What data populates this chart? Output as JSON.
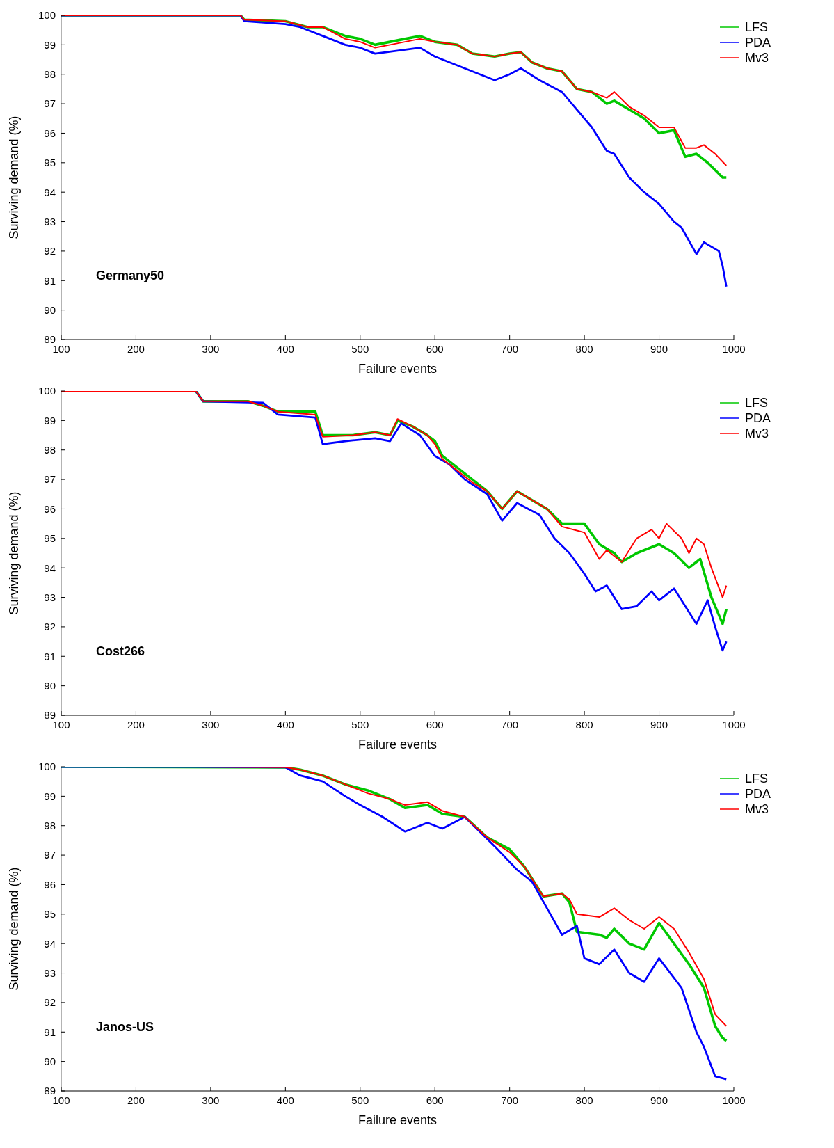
{
  "chart_data": [
    {
      "type": "line",
      "xlabel": "Failure events",
      "ylabel": "Surviving demand (%)",
      "annotations": [
        "Germany50"
      ],
      "xlim": [
        100,
        1000
      ],
      "xticks": [
        100,
        200,
        300,
        400,
        500,
        600,
        700,
        800,
        900,
        1000
      ],
      "ylim": [
        89,
        100
      ],
      "yticks": [
        89,
        90,
        91,
        92,
        93,
        94,
        95,
        96,
        97,
        98,
        99,
        100
      ],
      "grid": false,
      "legend": "top right",
      "marker": "none",
      "line_style": "solid",
      "series": [
        {
          "name": "LFS",
          "color": "#00c800",
          "x": [
            100,
            340,
            345,
            400,
            430,
            450,
            480,
            500,
            520,
            540,
            560,
            580,
            600,
            630,
            650,
            680,
            700,
            715,
            730,
            750,
            770,
            790,
            810,
            830,
            840,
            860,
            880,
            900,
            920,
            935,
            950,
            965,
            985,
            990
          ],
          "values": [
            100,
            100,
            99.85,
            99.8,
            99.6,
            99.6,
            99.3,
            99.2,
            99.0,
            99.1,
            99.2,
            99.3,
            99.1,
            99.0,
            98.7,
            98.6,
            98.7,
            98.75,
            98.4,
            98.2,
            98.1,
            97.5,
            97.4,
            97.0,
            97.1,
            96.8,
            96.5,
            96.0,
            96.1,
            95.2,
            95.3,
            95.0,
            94.5,
            94.5
          ]
        },
        {
          "name": "PDA",
          "color": "#0000ff",
          "x": [
            100,
            340,
            345,
            400,
            420,
            450,
            480,
            500,
            520,
            550,
            580,
            600,
            630,
            660,
            680,
            700,
            715,
            740,
            770,
            790,
            810,
            820,
            830,
            840,
            860,
            880,
            900,
            920,
            930,
            950,
            960,
            980,
            985,
            990
          ],
          "values": [
            100,
            100,
            99.8,
            99.7,
            99.6,
            99.3,
            99.0,
            98.9,
            98.7,
            98.8,
            98.9,
            98.6,
            98.3,
            98.0,
            97.8,
            98.0,
            98.2,
            97.8,
            97.4,
            96.8,
            96.2,
            95.8,
            95.4,
            95.3,
            94.5,
            94.0,
            93.6,
            93.0,
            92.8,
            91.9,
            92.3,
            92.0,
            91.5,
            90.8
          ]
        },
        {
          "name": "Mv3",
          "color": "#ff0000",
          "x": [
            100,
            340,
            345,
            400,
            430,
            450,
            480,
            500,
            520,
            540,
            560,
            580,
            600,
            630,
            650,
            680,
            700,
            715,
            730,
            750,
            770,
            790,
            810,
            830,
            840,
            860,
            880,
            900,
            920,
            935,
            950,
            960,
            975,
            990
          ],
          "values": [
            100,
            100,
            99.85,
            99.8,
            99.6,
            99.6,
            99.2,
            99.1,
            98.9,
            99.0,
            99.1,
            99.2,
            99.1,
            99.0,
            98.7,
            98.6,
            98.7,
            98.75,
            98.4,
            98.2,
            98.1,
            97.5,
            97.4,
            97.2,
            97.4,
            96.9,
            96.6,
            96.2,
            96.2,
            95.5,
            95.5,
            95.6,
            95.3,
            94.9
          ]
        }
      ]
    },
    {
      "type": "line",
      "xlabel": "Failure events",
      "ylabel": "Surviving demand (%)",
      "annotations": [
        "Cost266"
      ],
      "xlim": [
        100,
        1000
      ],
      "xticks": [
        100,
        200,
        300,
        400,
        500,
        600,
        700,
        800,
        900,
        1000
      ],
      "ylim": [
        89,
        100
      ],
      "yticks": [
        89,
        90,
        91,
        92,
        93,
        94,
        95,
        96,
        97,
        98,
        99,
        100
      ],
      "grid": false,
      "legend": "top right",
      "marker": "none",
      "line_style": "solid",
      "series": [
        {
          "name": "LFS",
          "color": "#00c800",
          "x": [
            100,
            280,
            290,
            350,
            370,
            390,
            440,
            450,
            490,
            520,
            540,
            550,
            570,
            590,
            600,
            610,
            630,
            650,
            670,
            690,
            710,
            750,
            770,
            800,
            820,
            840,
            850,
            870,
            900,
            920,
            940,
            955,
            970,
            985,
            990
          ],
          "values": [
            100,
            100,
            99.65,
            99.65,
            99.5,
            99.3,
            99.3,
            98.5,
            98.5,
            98.6,
            98.5,
            99.0,
            98.8,
            98.5,
            98.3,
            97.8,
            97.4,
            97.0,
            96.6,
            96.0,
            96.6,
            96.0,
            95.5,
            95.5,
            94.8,
            94.5,
            94.2,
            94.5,
            94.8,
            94.5,
            94.0,
            94.3,
            93.0,
            92.1,
            92.6
          ]
        },
        {
          "name": "PDA",
          "color": "#0000ff",
          "x": [
            100,
            280,
            290,
            370,
            390,
            440,
            450,
            480,
            520,
            540,
            555,
            580,
            600,
            620,
            640,
            670,
            690,
            710,
            740,
            760,
            780,
            800,
            815,
            830,
            850,
            870,
            890,
            900,
            920,
            940,
            950,
            965,
            975,
            985,
            990
          ],
          "values": [
            100,
            100,
            99.65,
            99.6,
            99.2,
            99.1,
            98.2,
            98.3,
            98.4,
            98.3,
            98.9,
            98.5,
            97.8,
            97.5,
            97.0,
            96.5,
            95.6,
            96.2,
            95.8,
            95.0,
            94.5,
            93.8,
            93.2,
            93.4,
            92.6,
            92.7,
            93.2,
            92.9,
            93.3,
            92.5,
            92.1,
            92.9,
            92.0,
            91.2,
            91.5
          ]
        },
        {
          "name": "Mv3",
          "color": "#ff0000",
          "x": [
            100,
            280,
            290,
            350,
            370,
            390,
            440,
            450,
            490,
            520,
            540,
            550,
            570,
            590,
            600,
            610,
            630,
            650,
            670,
            690,
            710,
            750,
            770,
            800,
            820,
            830,
            850,
            870,
            890,
            900,
            910,
            930,
            940,
            950,
            960,
            970,
            985,
            990
          ],
          "values": [
            100,
            100,
            99.65,
            99.65,
            99.5,
            99.3,
            99.2,
            98.45,
            98.5,
            98.6,
            98.5,
            99.05,
            98.8,
            98.5,
            98.2,
            97.7,
            97.3,
            96.9,
            96.6,
            96.0,
            96.6,
            96.0,
            95.4,
            95.2,
            94.3,
            94.6,
            94.2,
            95.0,
            95.3,
            95.0,
            95.5,
            95.0,
            94.5,
            95.0,
            94.8,
            94.0,
            93.0,
            93.4
          ]
        }
      ]
    },
    {
      "type": "line",
      "xlabel": "Failure events",
      "ylabel": "Surviving demand (%)",
      "annotations": [
        "Janos-US"
      ],
      "xlim": [
        100,
        1000
      ],
      "xticks": [
        100,
        200,
        300,
        400,
        500,
        600,
        700,
        800,
        900,
        1000
      ],
      "ylim": [
        89,
        100
      ],
      "yticks": [
        89,
        90,
        91,
        92,
        93,
        94,
        95,
        96,
        97,
        98,
        99,
        100
      ],
      "grid": false,
      "legend": "top right",
      "marker": "none",
      "line_style": "solid",
      "series": [
        {
          "name": "LFS",
          "color": "#00c800",
          "x": [
            100,
            400,
            420,
            450,
            480,
            510,
            540,
            560,
            590,
            610,
            640,
            670,
            700,
            720,
            730,
            745,
            770,
            780,
            790,
            820,
            830,
            840,
            860,
            880,
            900,
            920,
            940,
            960,
            975,
            985,
            990
          ],
          "values": [
            100,
            99.98,
            99.9,
            99.7,
            99.4,
            99.2,
            98.9,
            98.6,
            98.7,
            98.4,
            98.3,
            97.6,
            97.2,
            96.6,
            96.2,
            95.6,
            95.7,
            95.4,
            94.4,
            94.3,
            94.2,
            94.5,
            94.0,
            93.8,
            94.7,
            94.0,
            93.3,
            92.5,
            91.2,
            90.8,
            90.7
          ]
        },
        {
          "name": "PDA",
          "color": "#0000ff",
          "x": [
            100,
            280,
            400,
            420,
            450,
            480,
            500,
            530,
            560,
            590,
            610,
            640,
            680,
            710,
            730,
            750,
            770,
            790,
            800,
            820,
            840,
            860,
            880,
            900,
            930,
            950,
            960,
            975,
            990
          ],
          "values": [
            100,
            100,
            99.98,
            99.7,
            99.5,
            99.0,
            98.7,
            98.3,
            97.8,
            98.1,
            97.9,
            98.3,
            97.3,
            96.5,
            96.1,
            95.2,
            94.3,
            94.6,
            93.5,
            93.3,
            93.8,
            93.0,
            92.7,
            93.5,
            92.5,
            91.0,
            90.5,
            89.5,
            89.4
          ]
        },
        {
          "name": "Mv3",
          "color": "#ff0000",
          "x": [
            100,
            280,
            400,
            420,
            450,
            480,
            510,
            540,
            560,
            590,
            610,
            640,
            670,
            700,
            720,
            730,
            745,
            770,
            780,
            790,
            820,
            840,
            860,
            880,
            900,
            920,
            940,
            960,
            975,
            990
          ],
          "values": [
            100,
            100,
            99.98,
            99.9,
            99.7,
            99.4,
            99.1,
            98.9,
            98.7,
            98.8,
            98.5,
            98.3,
            97.6,
            97.1,
            96.6,
            96.2,
            95.6,
            95.7,
            95.5,
            95.0,
            94.9,
            95.2,
            94.8,
            94.5,
            94.9,
            94.5,
            93.7,
            92.8,
            91.6,
            91.2
          ]
        }
      ]
    }
  ]
}
